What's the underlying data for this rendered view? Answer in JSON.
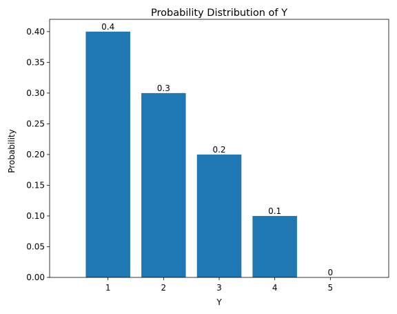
{
  "chart_data": {
    "type": "bar",
    "title": "Probability Distribution of Y",
    "xlabel": "Y",
    "ylabel": "Probability",
    "categories": [
      "1",
      "2",
      "3",
      "4",
      "5"
    ],
    "values": [
      0.4,
      0.3,
      0.2,
      0.1,
      0
    ],
    "data_labels": [
      "0.4",
      "0.3",
      "0.2",
      "0.1",
      "0"
    ],
    "y_ticks": [
      0.0,
      0.05,
      0.1,
      0.15,
      0.2,
      0.25,
      0.3,
      0.35,
      0.4
    ],
    "y_tick_labels": [
      "0.00",
      "0.05",
      "0.10",
      "0.15",
      "0.20",
      "0.25",
      "0.30",
      "0.35",
      "0.40"
    ],
    "ylim": [
      0,
      0.42
    ],
    "grid": false,
    "legend": "none",
    "bar_color": "#1f77b4"
  }
}
